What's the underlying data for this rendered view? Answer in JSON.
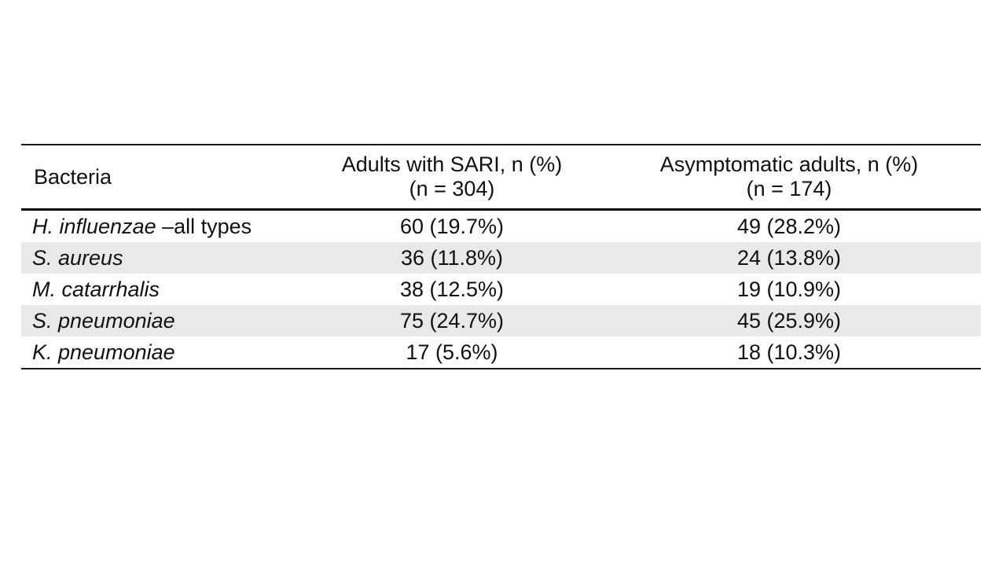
{
  "table": {
    "columns": [
      {
        "label": "Bacteria"
      },
      {
        "label": "Adults with SARI, n (%)",
        "sub": "(n = 304)"
      },
      {
        "label": "Asymptomatic adults, n (%)",
        "sub": "(n = 174)"
      }
    ],
    "rows": [
      {
        "name": "H. influenzae",
        "suffix": " –all types",
        "sari": "60 (19.7%)",
        "asym": "49 (28.2%)"
      },
      {
        "name": "S. aureus",
        "suffix": "",
        "sari": "36 (11.8%)",
        "asym": "24 (13.8%)"
      },
      {
        "name": "M. catarrhalis",
        "suffix": "",
        "sari": "38 (12.5%)",
        "asym": "19 (10.9%)"
      },
      {
        "name": "S. pneumoniae",
        "suffix": "",
        "sari": "75 (24.7%)",
        "asym": "45 (25.9%)"
      },
      {
        "name": "K. pneumoniae",
        "suffix": "",
        "sari": "17 (5.6%)",
        "asym": "18 (10.3%)"
      }
    ],
    "colors": {
      "row_shade": "#e9e9e9",
      "rule": "#000000",
      "text": "#111111"
    }
  }
}
